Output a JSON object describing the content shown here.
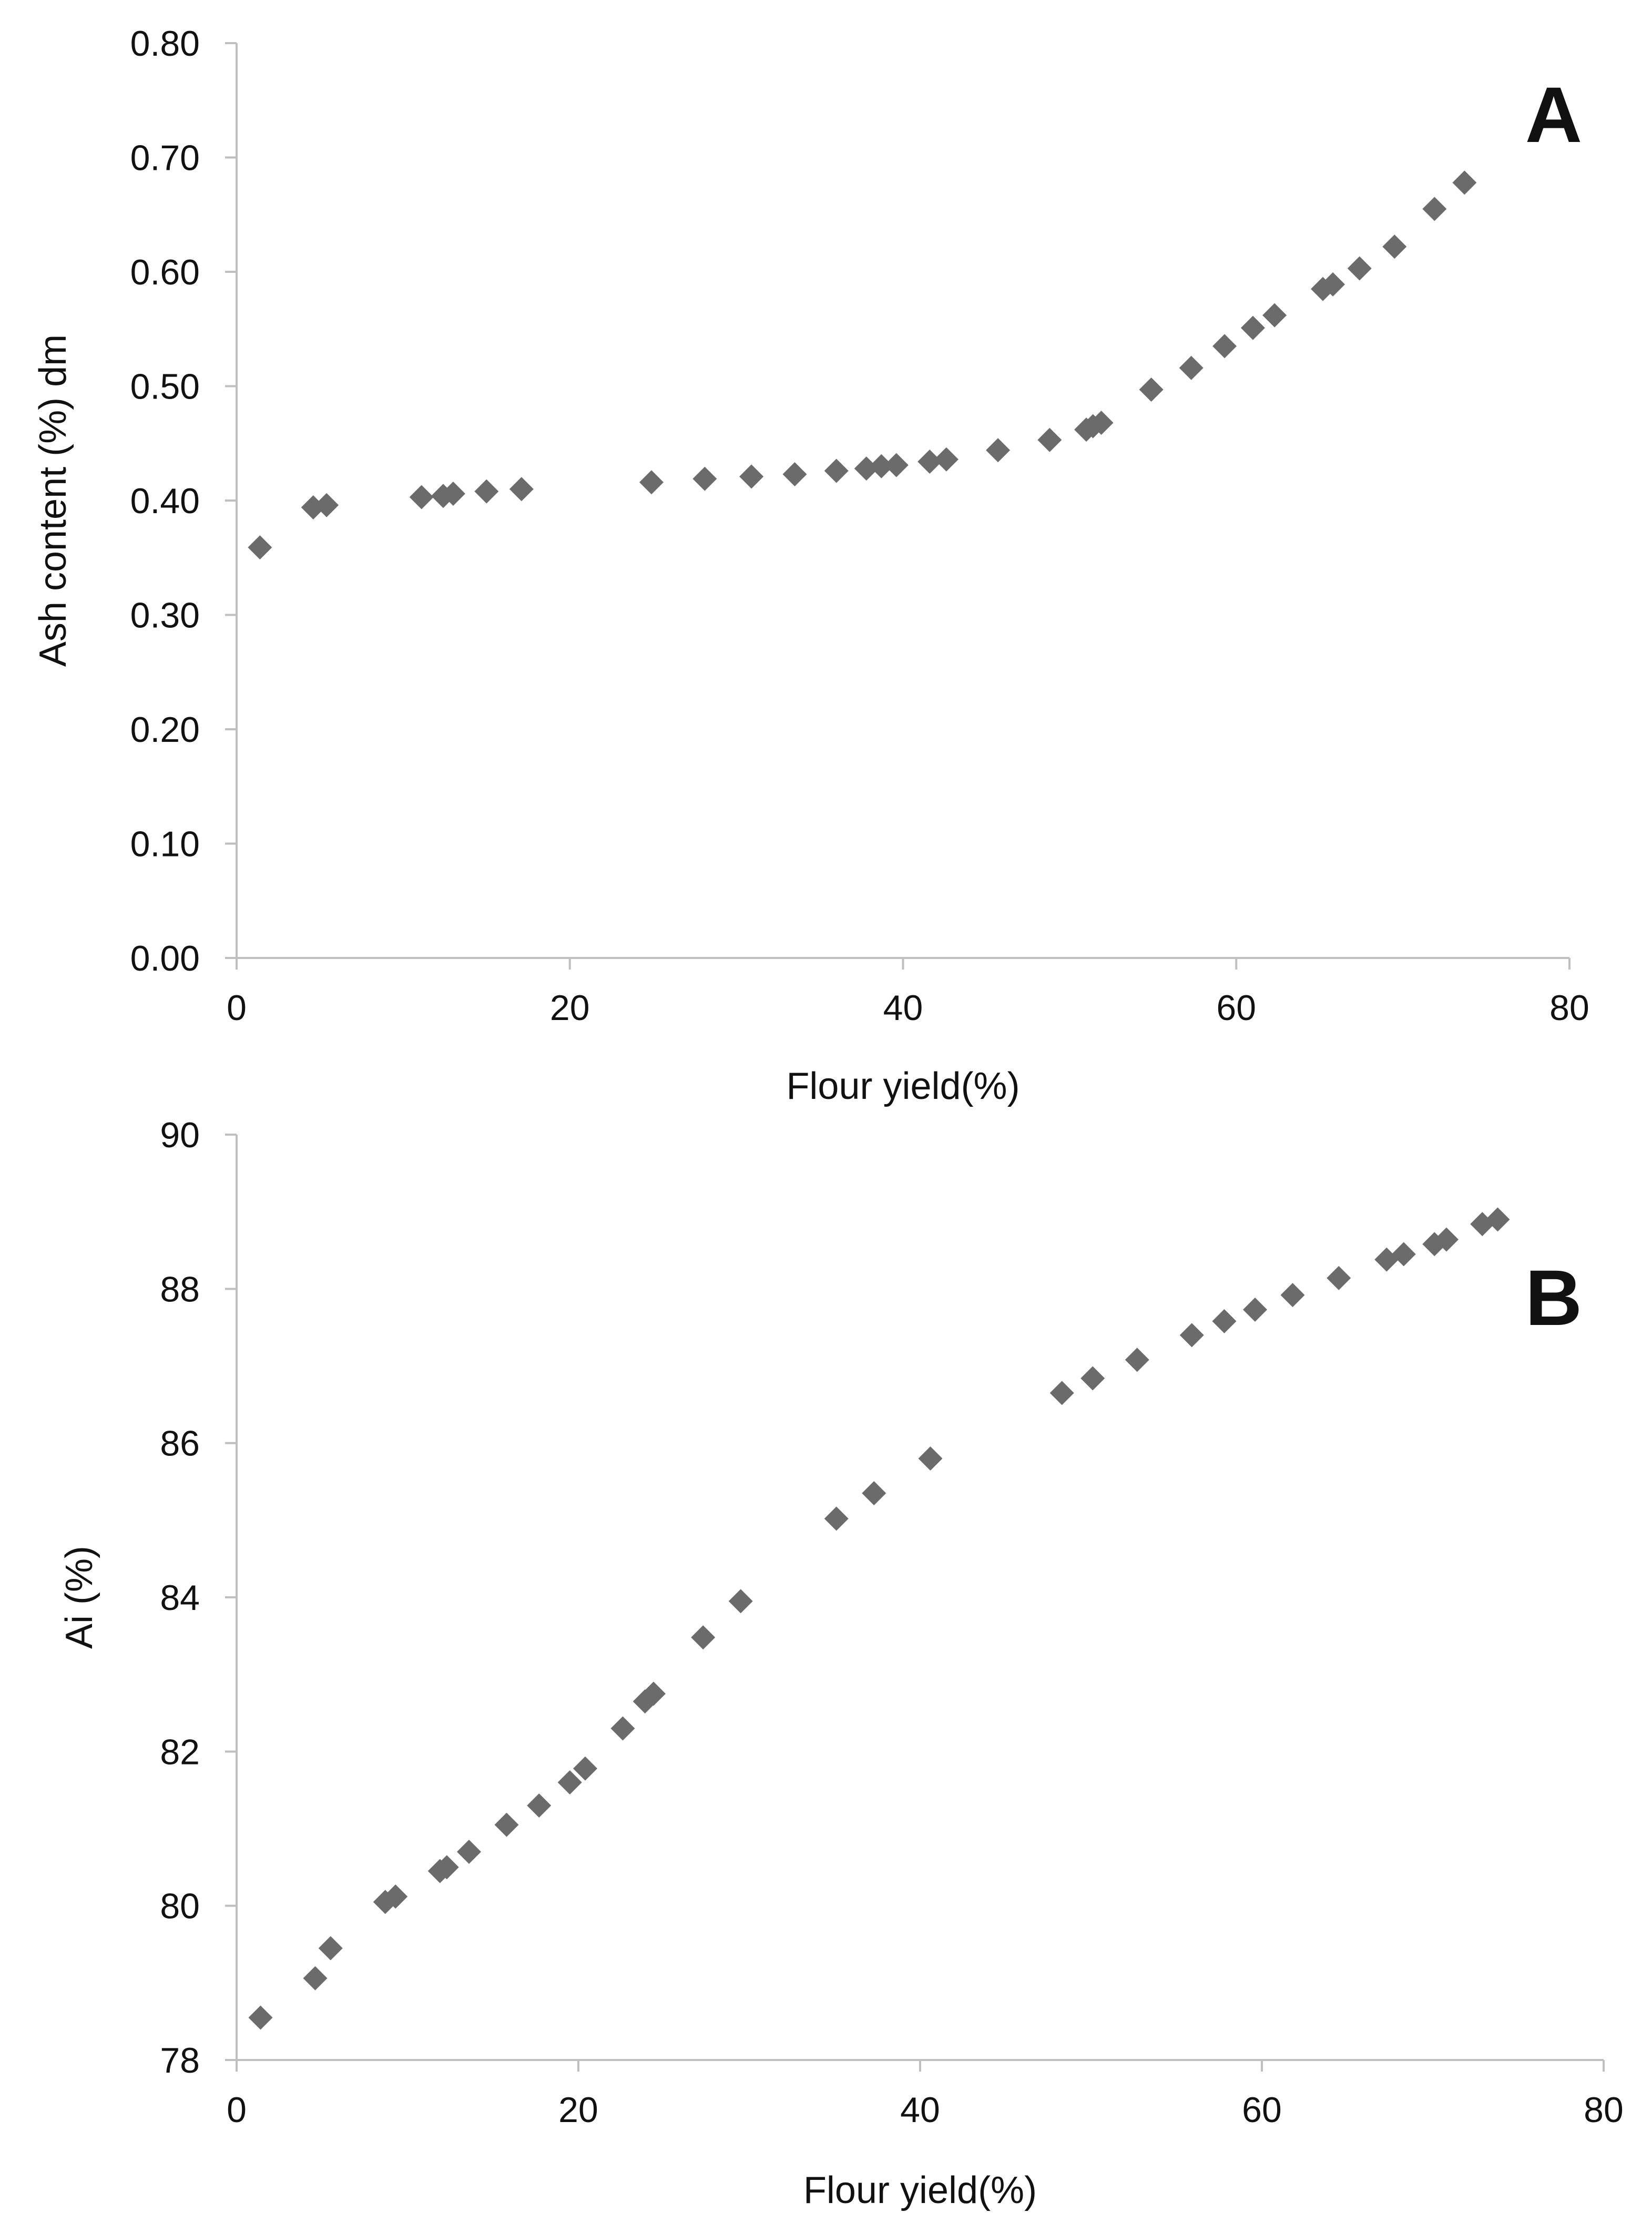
{
  "colors": {
    "marker": "#6b6b6b",
    "axis": "#bfbfbf",
    "text": "#111111"
  },
  "marker_shape": "diamond",
  "chart_data": [
    {
      "id": "A",
      "type": "scatter",
      "panel_label": "A",
      "xlabel": "Flour yield(%)",
      "ylabel": "Ash content (%) dm",
      "xlim": [
        0,
        80
      ],
      "ylim": [
        0,
        0.8
      ],
      "xticks": [
        0,
        20,
        40,
        60,
        80
      ],
      "xtick_labels": [
        "0",
        "20",
        "40",
        "60",
        "80"
      ],
      "yticks": [
        0,
        0.1,
        0.2,
        0.3,
        0.4,
        0.5,
        0.6,
        0.7,
        0.8
      ],
      "ytick_labels": [
        "0.00",
        "0.10",
        "0.20",
        "0.30",
        "0.40",
        "0.50",
        "0.60",
        "0.70",
        "0.80"
      ],
      "grid": false,
      "points": [
        [
          1.4,
          0.359
        ],
        [
          4.6,
          0.394
        ],
        [
          5.4,
          0.396
        ],
        [
          11.1,
          0.403
        ],
        [
          12.4,
          0.404
        ],
        [
          13.0,
          0.406
        ],
        [
          15.0,
          0.408
        ],
        [
          17.1,
          0.41
        ],
        [
          24.9,
          0.416
        ],
        [
          28.1,
          0.419
        ],
        [
          30.9,
          0.421
        ],
        [
          33.5,
          0.423
        ],
        [
          36.0,
          0.426
        ],
        [
          37.8,
          0.428
        ],
        [
          38.7,
          0.43
        ],
        [
          39.6,
          0.431
        ],
        [
          41.6,
          0.434
        ],
        [
          42.6,
          0.436
        ],
        [
          45.7,
          0.444
        ],
        [
          48.8,
          0.453
        ],
        [
          51.0,
          0.462
        ],
        [
          51.4,
          0.465
        ],
        [
          51.9,
          0.468
        ],
        [
          54.9,
          0.497
        ],
        [
          57.3,
          0.516
        ],
        [
          59.3,
          0.535
        ],
        [
          61.0,
          0.551
        ],
        [
          62.3,
          0.562
        ],
        [
          65.2,
          0.585
        ],
        [
          65.8,
          0.589
        ],
        [
          67.4,
          0.603
        ],
        [
          69.5,
          0.622
        ],
        [
          71.9,
          0.655
        ],
        [
          73.7,
          0.678
        ]
      ]
    },
    {
      "id": "B",
      "type": "scatter",
      "panel_label": "B",
      "xlabel": "Flour yield(%)",
      "ylabel": "Ai (%)",
      "xlim": [
        0,
        80
      ],
      "ylim": [
        78,
        90
      ],
      "xticks": [
        0,
        20,
        40,
        60,
        80
      ],
      "xtick_labels": [
        "0",
        "20",
        "40",
        "60",
        "80"
      ],
      "yticks": [
        78,
        80,
        82,
        84,
        86,
        88,
        90
      ],
      "ytick_labels": [
        "78",
        "80",
        "82",
        "84",
        "86",
        "88",
        "90"
      ],
      "grid": false,
      "points": [
        [
          1.4,
          78.55
        ],
        [
          4.6,
          79.06
        ],
        [
          5.5,
          79.45
        ],
        [
          8.7,
          80.05
        ],
        [
          9.3,
          80.12
        ],
        [
          11.9,
          80.45
        ],
        [
          12.3,
          80.5
        ],
        [
          13.6,
          80.7
        ],
        [
          15.8,
          81.05
        ],
        [
          17.7,
          81.3
        ],
        [
          19.5,
          81.6
        ],
        [
          20.4,
          81.78
        ],
        [
          22.6,
          82.3
        ],
        [
          23.9,
          82.65
        ],
        [
          24.4,
          82.75
        ],
        [
          27.3,
          83.48
        ],
        [
          29.5,
          83.95
        ],
        [
          35.1,
          85.02
        ],
        [
          37.3,
          85.35
        ],
        [
          40.6,
          85.8
        ],
        [
          48.3,
          86.65
        ],
        [
          50.1,
          86.84
        ],
        [
          52.7,
          87.08
        ],
        [
          55.9,
          87.4
        ],
        [
          57.8,
          87.58
        ],
        [
          59.6,
          87.73
        ],
        [
          61.8,
          87.92
        ],
        [
          64.5,
          88.14
        ],
        [
          67.3,
          88.38
        ],
        [
          68.3,
          88.45
        ],
        [
          70.1,
          88.58
        ],
        [
          70.8,
          88.64
        ],
        [
          72.9,
          88.84
        ],
        [
          73.8,
          88.9
        ]
      ]
    }
  ]
}
